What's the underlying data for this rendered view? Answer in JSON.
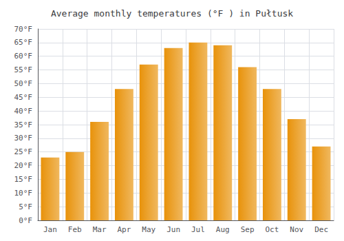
{
  "chart_data": {
    "type": "bar",
    "title": "Average monthly temperatures (°F ) in Pułtusk",
    "categories": [
      "Jan",
      "Feb",
      "Mar",
      "Apr",
      "May",
      "Jun",
      "Jul",
      "Aug",
      "Sep",
      "Oct",
      "Nov",
      "Dec"
    ],
    "values": [
      23,
      25,
      36,
      48,
      57,
      63,
      65,
      64,
      56,
      48,
      37,
      27
    ],
    "color": "#E8920A",
    "ylim": [
      0,
      70
    ],
    "yticks": [
      {
        "value": 0,
        "label": "0°F"
      },
      {
        "value": 5,
        "label": "5°F"
      },
      {
        "value": 10,
        "label": "10°F"
      },
      {
        "value": 15,
        "label": "15°F"
      },
      {
        "value": 20,
        "label": "20°F"
      },
      {
        "value": 25,
        "label": "25°F"
      },
      {
        "value": 30,
        "label": "30°F"
      },
      {
        "value": 35,
        "label": "35°F"
      },
      {
        "value": 40,
        "label": "40°F"
      },
      {
        "value": 45,
        "label": "45°F"
      },
      {
        "value": 50,
        "label": "50°F"
      },
      {
        "value": 55,
        "label": "55°F"
      },
      {
        "value": 60,
        "label": "60°F"
      },
      {
        "value": 65,
        "label": "65°F"
      },
      {
        "value": 70,
        "label": "70°F"
      }
    ],
    "grid": true
  }
}
